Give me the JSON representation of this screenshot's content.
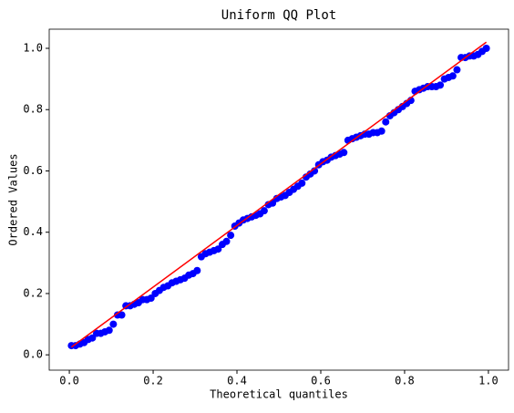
{
  "chart_data": {
    "type": "scatter",
    "title": "Uniform QQ Plot",
    "x_label": "Theoretical quantiles",
    "y_label": "Ordered Values",
    "xlim": [
      -0.048,
      1.048
    ],
    "ylim": [
      -0.05,
      1.0625
    ],
    "xticks": [
      {
        "value": 0,
        "label": "0.0"
      },
      0.2,
      0.4,
      0.6,
      0.8,
      {
        "value": 1,
        "label": "1.0"
      }
    ],
    "yticks": [
      {
        "value": 0,
        "label": "0.0"
      },
      0.2,
      0.4,
      0.6,
      0.8,
      {
        "value": 1,
        "label": "1.0"
      }
    ],
    "series": [
      {
        "kind": "scatter",
        "color": "#0000ff",
        "x": [
          0.005,
          0.015,
          0.025,
          0.035,
          0.045,
          0.055,
          0.065,
          0.075,
          0.085,
          0.095,
          0.105,
          0.115,
          0.125,
          0.135,
          0.145,
          0.155,
          0.165,
          0.175,
          0.185,
          0.195,
          0.205,
          0.215,
          0.225,
          0.235,
          0.245,
          0.255,
          0.265,
          0.275,
          0.285,
          0.295,
          0.305,
          0.315,
          0.325,
          0.335,
          0.345,
          0.355,
          0.365,
          0.375,
          0.385,
          0.395,
          0.405,
          0.415,
          0.425,
          0.435,
          0.445,
          0.455,
          0.465,
          0.475,
          0.485,
          0.495,
          0.505,
          0.515,
          0.525,
          0.535,
          0.545,
          0.555,
          0.565,
          0.575,
          0.585,
          0.595,
          0.605,
          0.615,
          0.625,
          0.635,
          0.645,
          0.655,
          0.665,
          0.675,
          0.685,
          0.695,
          0.705,
          0.715,
          0.725,
          0.735,
          0.745,
          0.755,
          0.765,
          0.775,
          0.785,
          0.795,
          0.805,
          0.815,
          0.825,
          0.835,
          0.845,
          0.855,
          0.865,
          0.875,
          0.885,
          0.895,
          0.905,
          0.915,
          0.925,
          0.935,
          0.945,
          0.955,
          0.965,
          0.975,
          0.985,
          0.995
        ],
        "values": [
          0.03,
          0.03,
          0.035,
          0.04,
          0.05,
          0.055,
          0.07,
          0.07,
          0.075,
          0.08,
          0.1,
          0.13,
          0.13,
          0.16,
          0.16,
          0.165,
          0.17,
          0.18,
          0.18,
          0.185,
          0.2,
          0.21,
          0.22,
          0.225,
          0.235,
          0.24,
          0.245,
          0.25,
          0.26,
          0.265,
          0.275,
          0.32,
          0.33,
          0.335,
          0.34,
          0.345,
          0.36,
          0.37,
          0.39,
          0.42,
          0.43,
          0.44,
          0.445,
          0.45,
          0.455,
          0.46,
          0.47,
          0.49,
          0.495,
          0.51,
          0.515,
          0.52,
          0.53,
          0.54,
          0.55,
          0.56,
          0.58,
          0.59,
          0.6,
          0.62,
          0.63,
          0.635,
          0.645,
          0.65,
          0.655,
          0.66,
          0.7,
          0.705,
          0.71,
          0.715,
          0.72,
          0.72,
          0.725,
          0.725,
          0.73,
          0.76,
          0.78,
          0.79,
          0.8,
          0.81,
          0.82,
          0.83,
          0.86,
          0.865,
          0.87,
          0.875,
          0.875,
          0.875,
          0.88,
          0.9,
          0.905,
          0.91,
          0.93,
          0.97,
          0.97,
          0.975,
          0.975,
          0.98,
          0.99,
          1.0
        ]
      },
      {
        "kind": "line",
        "color": "#ff0000",
        "x": [
          0.005,
          0.995
        ],
        "values": [
          0.025,
          1.02
        ]
      }
    ]
  }
}
